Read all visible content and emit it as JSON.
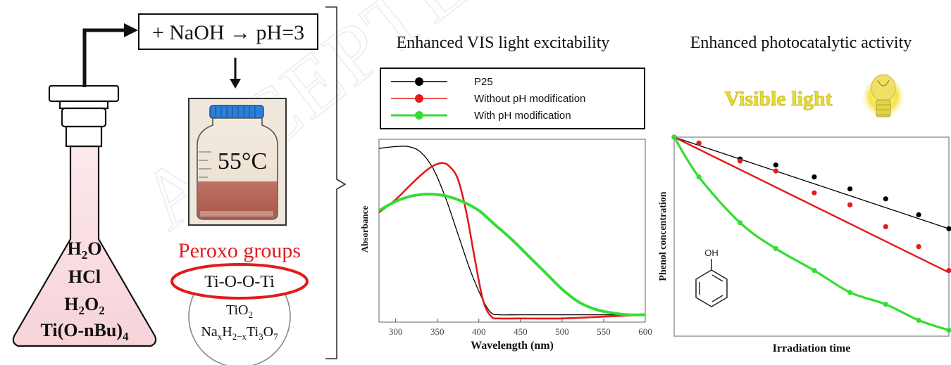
{
  "watermark": "ACCEPTED MANUSCRIPT",
  "synthesis": {
    "flask_contents": {
      "water": {
        "base": "H",
        "sub": "2",
        "tail": "O"
      },
      "acid": "HCl",
      "peroxide": {
        "base": "H",
        "sub1": "2",
        "mid": "O",
        "sub2": "2"
      },
      "precursor": {
        "base": "Ti(O-nBu)",
        "sub": "4"
      }
    },
    "step_addition": "+ NaOH → pH=3",
    "bottle_temperature": "55°C",
    "peroxo_title": "Peroxo groups",
    "peroxo_bond": "Ti-O-O-Ti",
    "particle_tio2": {
      "base": "TiO",
      "sub": "2"
    },
    "particle_titanate": {
      "p1": "Na",
      "s1": "x",
      "p2": "H",
      "s2": "2−x",
      "p3": "Ti",
      "s3": "3",
      "p4": "O",
      "s4": "7"
    }
  },
  "absorbance_panel": {
    "heading": "Enhanced VIS light excitability",
    "legend": [
      {
        "label": "P25",
        "color": "#000000"
      },
      {
        "label": "Without pH modification",
        "color": "#e41a1c"
      },
      {
        "label": "With pH modification",
        "color": "#33dd33"
      }
    ]
  },
  "photocatalysis_panel": {
    "heading": "Enhanced photocatalytic activity",
    "visible_light_label": "Visible light",
    "phenol_oh_label": "OH"
  },
  "chart_data": [
    {
      "type": "line",
      "title": "",
      "xlabel": "Wavelength (nm)",
      "ylabel": "Absorbance",
      "xlim": [
        280,
        600
      ],
      "ylim": [
        0,
        1
      ],
      "x_ticks": [
        300,
        350,
        400,
        450,
        500,
        550,
        600
      ],
      "grid": false,
      "series": [
        {
          "name": "P25",
          "color": "#000000",
          "x": [
            280,
            300,
            315,
            330,
            345,
            360,
            375,
            390,
            405,
            415,
            425,
            450,
            500,
            550,
            600
          ],
          "y": [
            0.95,
            0.96,
            0.96,
            0.93,
            0.84,
            0.68,
            0.48,
            0.28,
            0.12,
            0.05,
            0.04,
            0.04,
            0.04,
            0.04,
            0.04
          ]
        },
        {
          "name": "Without pH modification",
          "color": "#e41a1c",
          "x": [
            280,
            300,
            320,
            340,
            355,
            365,
            375,
            385,
            395,
            405,
            415,
            425,
            450,
            500,
            550,
            600
          ],
          "y": [
            0.6,
            0.67,
            0.76,
            0.84,
            0.87,
            0.85,
            0.78,
            0.6,
            0.35,
            0.12,
            0.03,
            0.02,
            0.02,
            0.02,
            0.03,
            0.04
          ]
        },
        {
          "name": "With pH modification",
          "color": "#33dd33",
          "x": [
            280,
            300,
            320,
            340,
            360,
            380,
            400,
            420,
            440,
            460,
            480,
            500,
            520,
            540,
            560,
            580,
            600
          ],
          "y": [
            0.61,
            0.66,
            0.69,
            0.7,
            0.69,
            0.66,
            0.61,
            0.53,
            0.45,
            0.36,
            0.27,
            0.18,
            0.11,
            0.07,
            0.05,
            0.04,
            0.04
          ]
        }
      ]
    },
    {
      "type": "scatter",
      "title": "",
      "xlabel": "Irradiation time",
      "ylabel": "Phenol concentration",
      "xlim": [
        0,
        1
      ],
      "ylim": [
        0,
        1
      ],
      "grid": false,
      "series": [
        {
          "name": "P25",
          "color": "#000000",
          "x": [
            0,
            0.09,
            0.24,
            0.37,
            0.51,
            0.64,
            0.77,
            0.89,
            1.0
          ],
          "y": [
            1.0,
            0.97,
            0.89,
            0.86,
            0.8,
            0.74,
            0.69,
            0.61,
            0.54
          ],
          "fit": [
            1.0,
            0.54
          ]
        },
        {
          "name": "Without pH modification",
          "color": "#e41a1c",
          "x": [
            0,
            0.09,
            0.24,
            0.37,
            0.51,
            0.64,
            0.77,
            0.89,
            1.0
          ],
          "y": [
            1.0,
            0.97,
            0.88,
            0.83,
            0.72,
            0.66,
            0.55,
            0.45,
            0.33
          ],
          "fit": [
            1.0,
            0.32
          ]
        },
        {
          "name": "With pH modification",
          "color": "#33dd33",
          "x": [
            0,
            0.09,
            0.24,
            0.37,
            0.51,
            0.64,
            0.77,
            0.89,
            1.0
          ],
          "y": [
            1.0,
            0.8,
            0.57,
            0.44,
            0.33,
            0.22,
            0.16,
            0.08,
            0.03
          ]
        }
      ]
    }
  ]
}
